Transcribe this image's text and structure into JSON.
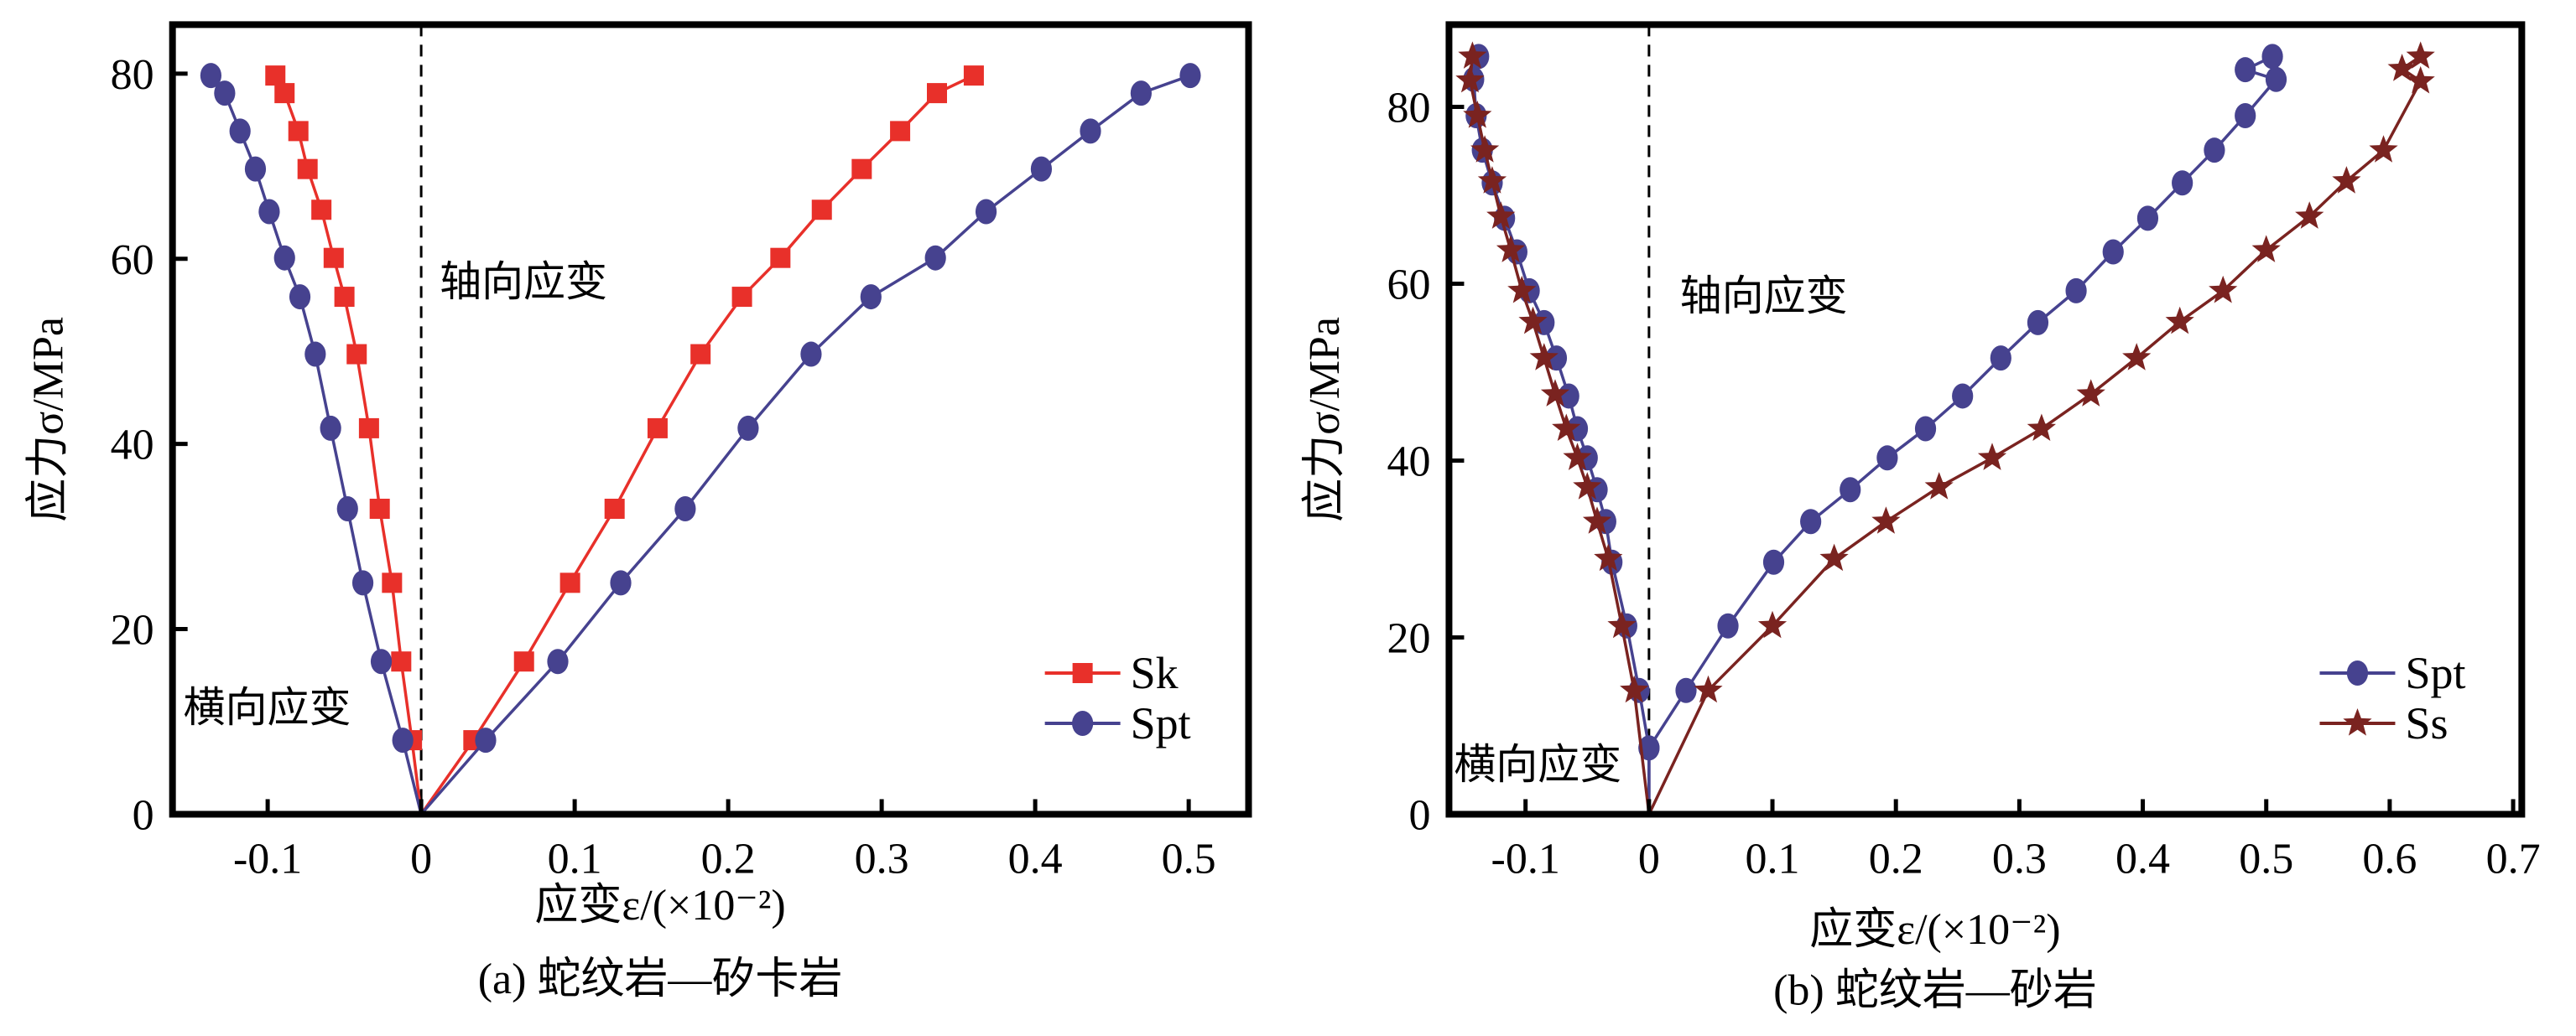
{
  "chart_data": [
    {
      "id": "a",
      "type": "line",
      "caption": "(a) 蛇纹岩—矽卡岩",
      "xlabel": "应变ε/(×10⁻²)",
      "ylabel": "应力σ/MPa",
      "xlim": [
        -0.162,
        0.539
      ],
      "ylim": [
        0,
        85.3
      ],
      "xticks": [
        -0.1,
        0,
        0.1,
        0.2,
        0.3,
        0.4,
        0.5
      ],
      "xtick_labels": [
        "-0.1",
        "0",
        "0.1",
        "0.2",
        "0.3",
        "0.4",
        "0.5"
      ],
      "yticks": [
        0,
        20,
        40,
        60,
        80
      ],
      "ytick_labels": [
        "0",
        "20",
        "40",
        "60",
        "80"
      ],
      "grid": false,
      "legend_position": "bottom-right",
      "annotations": [
        {
          "text": "轴向应变",
          "x": 0.012,
          "y": 56
        },
        {
          "text": "横向应变",
          "x": -0.155,
          "y": 10
        }
      ],
      "reference_line": {
        "x": 0,
        "style": "dashed"
      },
      "series": [
        {
          "name": "Sk",
          "color": "#e8302a",
          "marker": "square",
          "lateral": {
            "x": [
              0,
              -0.006,
              -0.013,
              -0.019,
              -0.027,
              -0.034,
              -0.042,
              -0.05,
              -0.057,
              -0.065,
              -0.074,
              -0.08,
              -0.089,
              -0.095
            ],
            "y": [
              0,
              8.0,
              16.5,
              25.0,
              33.0,
              41.7,
              49.7,
              55.9,
              60.1,
              65.3,
              69.7,
              73.8,
              77.9,
              79.8
            ]
          },
          "axial": {
            "x": [
              0,
              0.034,
              0.067,
              0.097,
              0.126,
              0.154,
              0.182,
              0.209,
              0.234,
              0.261,
              0.287,
              0.312,
              0.336,
              0.36
            ],
            "y": [
              0,
              8.0,
              16.5,
              25.0,
              33.0,
              41.7,
              49.7,
              55.9,
              60.1,
              65.3,
              69.7,
              73.8,
              77.9,
              79.8
            ]
          }
        },
        {
          "name": "Spt",
          "color": "#46428f",
          "marker": "circle",
          "lateral": {
            "x": [
              0,
              -0.012,
              -0.026,
              -0.038,
              -0.048,
              -0.059,
              -0.069,
              -0.079,
              -0.089,
              -0.099,
              -0.108,
              -0.118,
              -0.128,
              -0.137
            ],
            "y": [
              0,
              8.0,
              16.5,
              25.0,
              33.0,
              41.7,
              49.7,
              55.9,
              60.1,
              65.1,
              69.7,
              73.8,
              77.9,
              79.8
            ]
          },
          "axial": {
            "x": [
              0,
              0.042,
              0.089,
              0.13,
              0.172,
              0.213,
              0.254,
              0.293,
              0.335,
              0.368,
              0.404,
              0.436,
              0.469,
              0.501
            ],
            "y": [
              0,
              8.0,
              16.5,
              25.0,
              33.0,
              41.7,
              49.7,
              55.9,
              60.1,
              65.1,
              69.7,
              73.8,
              77.9,
              79.8
            ]
          }
        }
      ]
    },
    {
      "id": "b",
      "type": "line",
      "caption": "(b) 蛇纹岩—砂岩",
      "xlabel": "应变ε/(×10⁻²)",
      "ylabel": "应力σ/MPa",
      "xlim": [
        -0.162,
        0.707
      ],
      "ylim": [
        0,
        89.3
      ],
      "xticks": [
        -0.1,
        0,
        0.1,
        0.2,
        0.3,
        0.4,
        0.5,
        0.6,
        0.7
      ],
      "xtick_labels": [
        "-0.1",
        "0",
        "0.1",
        "0.2",
        "0.3",
        "0.4",
        "0.5",
        "0.6",
        "0.7"
      ],
      "yticks": [
        0,
        20,
        40,
        60,
        80
      ],
      "ytick_labels": [
        "0",
        "20",
        "40",
        "60",
        "80"
      ],
      "grid": false,
      "legend_position": "bottom-right",
      "annotations": [
        {
          "text": "轴向应变",
          "x": 0.025,
          "y": 57
        },
        {
          "text": "横向应变",
          "x": -0.158,
          "y": 4
        }
      ],
      "reference_line": {
        "x": 0,
        "style": "dashed"
      },
      "series": [
        {
          "name": "Spt",
          "color": "#46428f",
          "marker": "circle",
          "lateral": {
            "x": [
              0,
              0,
              -0.008,
              -0.018,
              -0.03,
              -0.035,
              -0.042,
              -0.05,
              -0.058,
              -0.065,
              -0.075,
              -0.085,
              -0.097,
              -0.107,
              -0.117,
              -0.127,
              -0.135,
              -0.14,
              -0.142,
              -0.138
            ],
            "y": [
              0,
              7.5,
              14.0,
              21.3,
              28.5,
              33.1,
              36.7,
              40.3,
              43.6,
              47.3,
              51.6,
              55.6,
              59.2,
              63.6,
              67.4,
              71.4,
              75.1,
              79.0,
              83.1,
              85.7
            ]
          },
          "axial": {
            "x": [
              0,
              0,
              0.03,
              0.064,
              0.101,
              0.131,
              0.163,
              0.193,
              0.224,
              0.254,
              0.285,
              0.315,
              0.346,
              0.376,
              0.404,
              0.432,
              0.458,
              0.483,
              0.508,
              0.483,
              0.505
            ],
            "y": [
              0,
              7.5,
              14.0,
              21.3,
              28.5,
              33.1,
              36.7,
              40.3,
              43.6,
              47.3,
              51.6,
              55.6,
              59.2,
              63.6,
              67.4,
              71.4,
              75.1,
              79.0,
              83.1,
              84.2,
              85.7
            ]
          }
        },
        {
          "name": "Ss",
          "color": "#7a2320",
          "marker": "star",
          "lateral": {
            "x": [
              0,
              -0.012,
              -0.022,
              -0.033,
              -0.042,
              -0.05,
              -0.058,
              -0.067,
              -0.076,
              -0.085,
              -0.094,
              -0.103,
              -0.112,
              -0.12,
              -0.127,
              -0.133,
              -0.139,
              -0.145,
              -0.143
            ],
            "y": [
              0,
              14.0,
              21.3,
              28.9,
              33.1,
              37.0,
              40.3,
              43.6,
              47.5,
              51.6,
              55.7,
              59.2,
              63.8,
              67.6,
              71.6,
              75.1,
              79.0,
              83.0,
              85.7
            ]
          },
          "axial": {
            "x": [
              0,
              0.048,
              0.1,
              0.15,
              0.192,
              0.235,
              0.278,
              0.318,
              0.358,
              0.395,
              0.43,
              0.465,
              0.5,
              0.535,
              0.565,
              0.595,
              0.625,
              0.61,
              0.625
            ],
            "y": [
              0,
              14.0,
              21.3,
              28.9,
              33.1,
              37.0,
              40.3,
              43.6,
              47.5,
              51.6,
              55.7,
              59.2,
              63.8,
              67.6,
              71.6,
              75.1,
              82.9,
              84.3,
              85.7
            ]
          }
        }
      ]
    }
  ]
}
